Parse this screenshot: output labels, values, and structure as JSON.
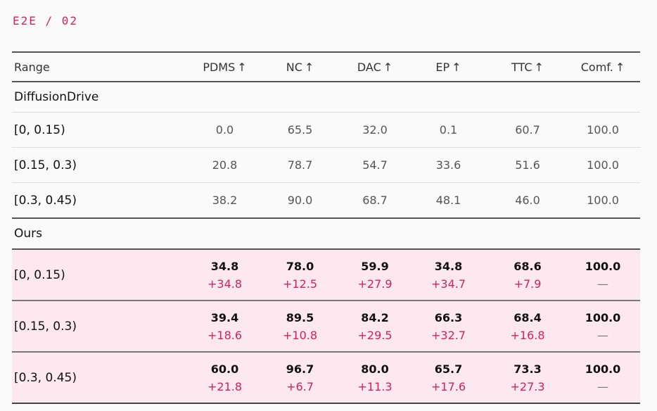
{
  "eyebrow": "E2E / 02",
  "columns": [
    "Range",
    "PDMS",
    "NC",
    "DAC",
    "EP",
    "TTC",
    "Comf."
  ],
  "arrow": "↑",
  "sections": [
    {
      "name": "DiffusionDrive",
      "rows": [
        {
          "range": "[0, 0.15)",
          "values": [
            "0.0",
            "65.5",
            "32.0",
            "0.1",
            "60.7",
            "100.0"
          ]
        },
        {
          "range": "[0.15, 0.3)",
          "values": [
            "20.8",
            "78.7",
            "54.7",
            "33.6",
            "51.6",
            "100.0"
          ]
        },
        {
          "range": "[0.3, 0.45)",
          "values": [
            "38.2",
            "90.0",
            "68.7",
            "48.1",
            "46.0",
            "100.0"
          ]
        }
      ]
    },
    {
      "name": "Ours",
      "rows": [
        {
          "range": "[0, 0.15)",
          "values": [
            "34.8",
            "78.0",
            "59.9",
            "34.8",
            "68.6",
            "100.0"
          ],
          "deltas": [
            "+34.8",
            "+12.5",
            "+27.9",
            "+34.7",
            "+7.9",
            "—"
          ]
        },
        {
          "range": "[0.15, 0.3)",
          "values": [
            "39.4",
            "89.5",
            "84.2",
            "66.3",
            "68.4",
            "100.0"
          ],
          "deltas": [
            "+18.6",
            "+10.8",
            "+29.5",
            "+32.7",
            "+16.8",
            "—"
          ]
        },
        {
          "range": "[0.3, 0.45)",
          "values": [
            "60.0",
            "96.7",
            "80.0",
            "65.7",
            "73.3",
            "100.0"
          ],
          "deltas": [
            "+21.8",
            "+6.7",
            "+11.3",
            "+17.6",
            "+27.3",
            "—"
          ]
        }
      ]
    }
  ],
  "colors": {
    "accent": "#d0225e",
    "highlight": "#fce8ee"
  }
}
